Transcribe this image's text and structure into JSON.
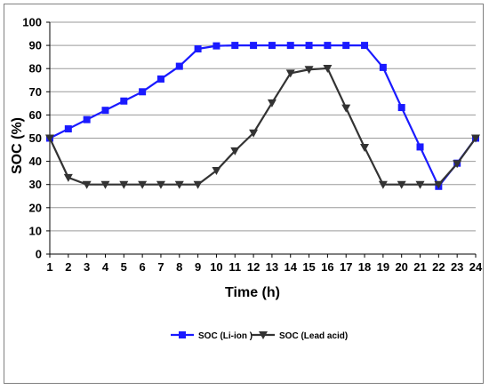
{
  "chart_data": {
    "type": "line",
    "title": "",
    "xlabel": "Time (h)",
    "ylabel": "SOC (%)",
    "x": [
      1,
      2,
      3,
      4,
      5,
      6,
      7,
      8,
      9,
      10,
      11,
      12,
      13,
      14,
      15,
      16,
      17,
      18,
      19,
      20,
      21,
      22,
      23,
      24
    ],
    "xlim": [
      1,
      24
    ],
    "ylim": [
      0,
      100
    ],
    "yticks": [
      0,
      10,
      20,
      30,
      40,
      50,
      60,
      70,
      80,
      90,
      100
    ],
    "grid": "horizontal",
    "legend_position": "bottom",
    "series": [
      {
        "name": "SOC (Li-ion )",
        "color": "#1a1aff",
        "marker": "square",
        "values": [
          50,
          54,
          58,
          62,
          66,
          70,
          75.5,
          81,
          88.5,
          89.8,
          90,
          90,
          90,
          90,
          90,
          90,
          90,
          90,
          80.5,
          63.2,
          46.2,
          29.2,
          39.2,
          50
        ]
      },
      {
        "name": "SOC (Lead acid)",
        "color": "#333333",
        "marker": "triangle-down",
        "values": [
          50,
          33,
          30,
          30,
          30,
          30,
          30,
          30,
          30,
          36,
          44.5,
          52.2,
          65.2,
          78,
          79.6,
          80.1,
          63,
          46,
          30,
          30,
          30,
          30,
          39,
          50
        ]
      }
    ]
  }
}
